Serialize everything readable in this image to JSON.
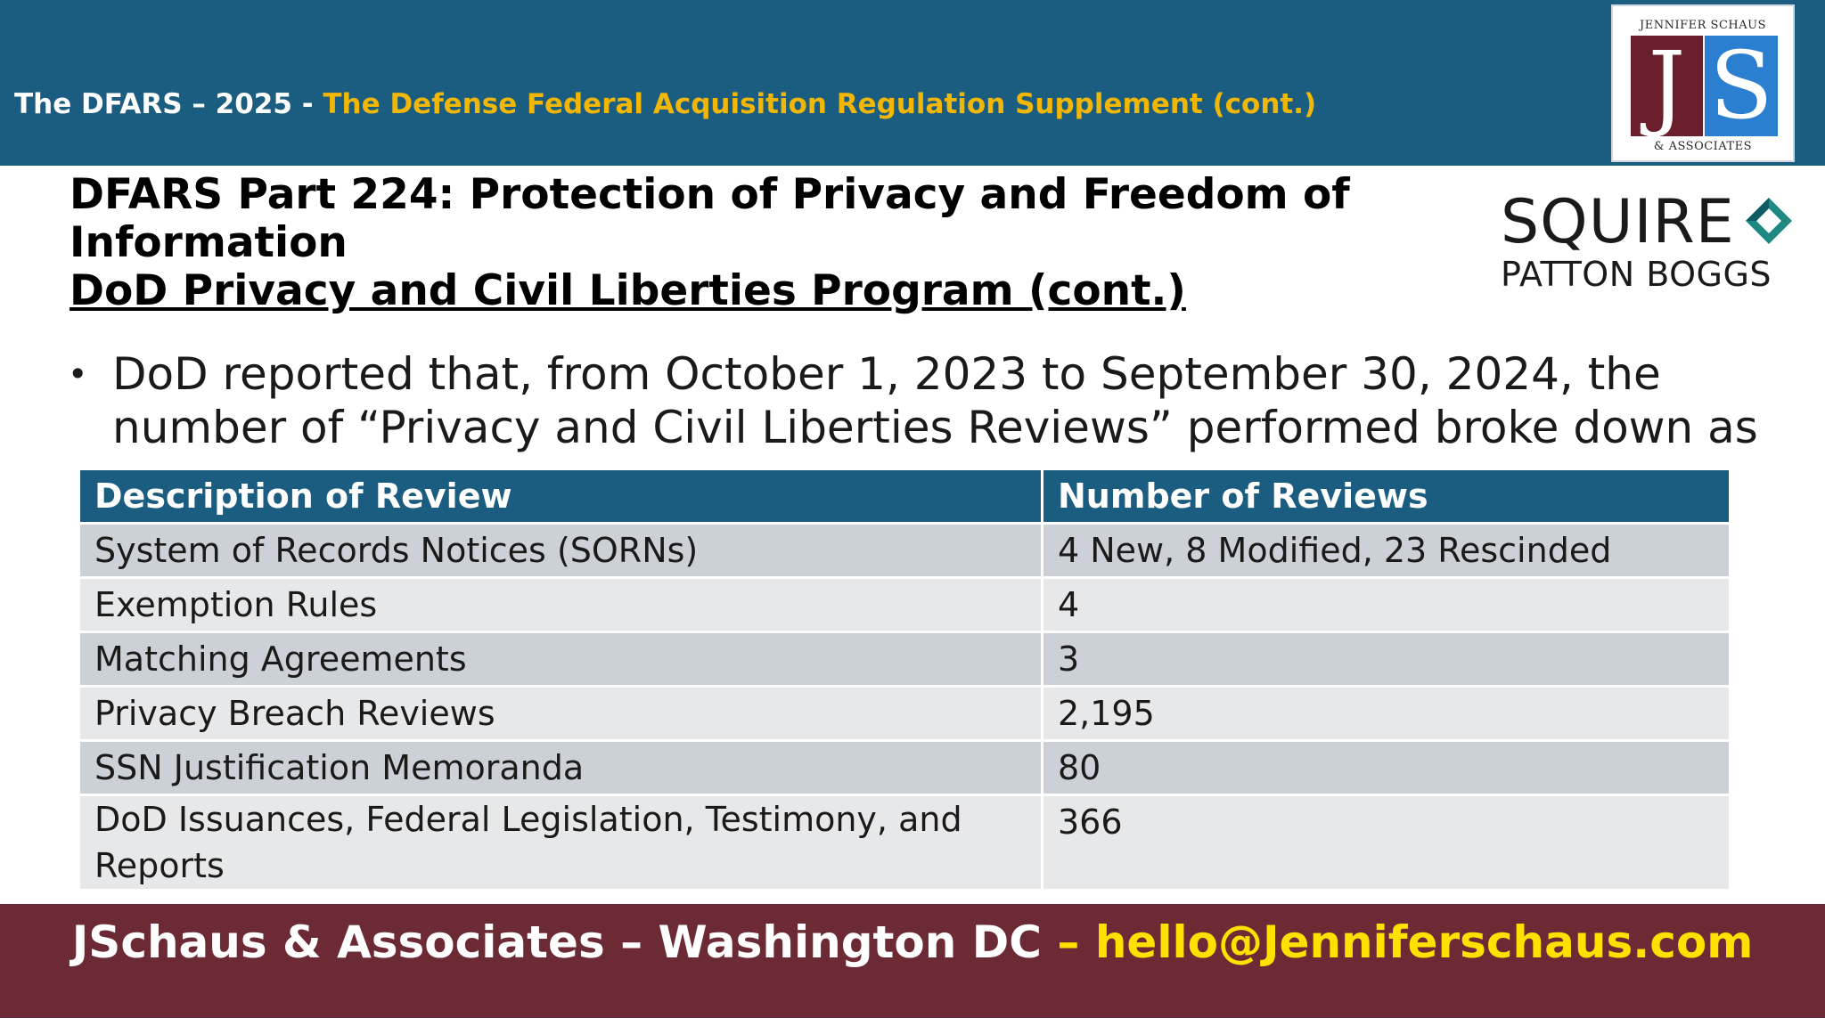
{
  "header": {
    "title_prefix": "The DFARS – 2025 -",
    "title_accent": "The Defense Federal Acquisition Regulation Supplement (cont.)",
    "colors": {
      "bar": "#1b5d80",
      "accent": "#f2b705"
    }
  },
  "logos": {
    "js": {
      "top_text": "JENNIFER SCHAUS",
      "letter_j": "J",
      "letter_s": "S",
      "bottom_text": "& ASSOCIATES"
    },
    "squire": {
      "line1": "SQUIRE",
      "line2": "PATTON BOGGS",
      "icon": "squire-mark-icon"
    }
  },
  "slide": {
    "heading_line1": "DFARS Part 224:  Protection of Privacy and Freedom of Information",
    "heading_line2": "DoD Privacy and Civil Liberties Program (cont.)",
    "bullet_symbol": "•",
    "bullet_text": "DoD reported that, from October 1, 2023 to September 30, 2024, the number of “Privacy and Civil Liberties Reviews” performed broke down as"
  },
  "table": {
    "headers": [
      "Description of Review",
      "Number of Reviews"
    ],
    "rows": [
      [
        "System of Records Notices (SORNs)",
        "4 New, 8 Modified, 23 Rescinded"
      ],
      [
        "Exemption Rules",
        "4"
      ],
      [
        "Matching Agreements",
        "3"
      ],
      [
        "Privacy Breach Reviews",
        "2,195"
      ],
      [
        "SSN Justification Memoranda",
        "80"
      ],
      [
        "DoD Issuances, Federal Legislation, Testimony, and Reports",
        "366"
      ]
    ]
  },
  "footer": {
    "text_main": "JSchaus & Associates – Washington DC",
    "text_email": "– hello@Jenniferschaus.com",
    "colors": {
      "bar": "#6b2a34",
      "email": "#ffe100"
    }
  }
}
